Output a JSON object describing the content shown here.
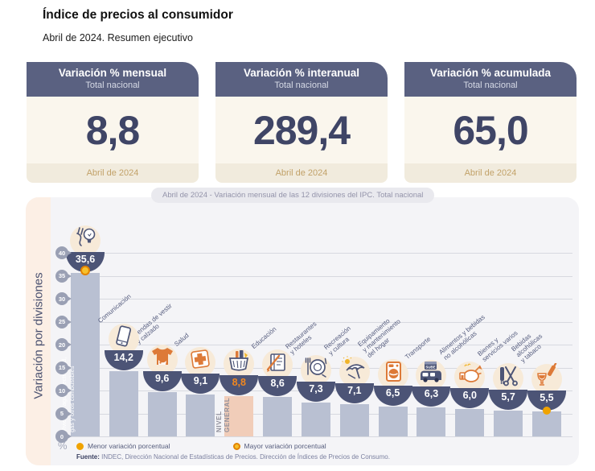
{
  "header": {
    "title": "Índice de precios al consumidor",
    "subtitle": "Abril de 2024. Resumen ejecutivo"
  },
  "cards": [
    {
      "title": "Variación % mensual",
      "subtitle": "Total nacional",
      "value": "8,8",
      "period": "Abril de 2024"
    },
    {
      "title": "Variación % interanual",
      "subtitle": "Total nacional",
      "value": "289,4",
      "period": "Abril de 2024"
    },
    {
      "title": "Variación % acumulada",
      "subtitle": "Total nacional",
      "value": "65,0",
      "period": "Abril de 2024"
    }
  ],
  "colors": {
    "navy": "#4c5476",
    "header_navy": "#5a6181",
    "bar_gray": "#b9c0d2",
    "bar_highlight": "#f1cdb9",
    "orange": "#dd7a38",
    "value_orange": "#f1871f",
    "yellow_dot": "#f0a300",
    "cream": "#faf6ed",
    "gold_text": "#c2a269"
  },
  "chart_data": {
    "type": "bar",
    "title": "Abril de 2024 - Variación mensual de las 12 divisiones del IPC. Total nacional",
    "ylabel": "Variación por divisiones",
    "unit": "%",
    "ylim": [
      0,
      40
    ],
    "yticks": [
      0,
      5,
      10,
      15,
      20,
      25,
      30,
      35,
      40
    ],
    "grid": true,
    "legend_position": "bottom",
    "legend": [
      {
        "marker": "solid-dot",
        "label": "Menor variación porcentual"
      },
      {
        "marker": "ring-dot",
        "label": "Mayor variación porcentual"
      }
    ],
    "source_label": "Fuente:",
    "source_text": " INDEC, Dirección Nacional de Estadísticas de Precios. Dirección de Índices de Precios de Consumo.",
    "bars": [
      {
        "label": "Vivienda, agua, electricidad,\ngas y otros combustibles",
        "value": 35.6,
        "display": "35,6",
        "icon": "bulb-plug-icon",
        "label_pos": "inside-white",
        "marker": "mayor"
      },
      {
        "label": "Comunicación",
        "value": 14.2,
        "display": "14,2",
        "icon": "smartphone-icon",
        "label_pos": "above"
      },
      {
        "label": "Prendas de vestir\ny calzado",
        "value": 9.6,
        "display": "9,6",
        "icon": "tshirt-icon",
        "label_pos": "above"
      },
      {
        "label": "Salud",
        "value": 9.1,
        "display": "9,1",
        "icon": "medical-cross-icon",
        "label_pos": "above"
      },
      {
        "label": "NIVEL\nGENERAL",
        "value": 8.8,
        "display": "8,8",
        "icon": "basket-icon",
        "label_pos": "inside-gray",
        "highlight": true
      },
      {
        "label": "Educación",
        "value": 8.6,
        "display": "8,6",
        "icon": "book-pencil-icon",
        "label_pos": "above"
      },
      {
        "label": "Restaurantes\ny hoteles",
        "value": 7.3,
        "display": "7,3",
        "icon": "plate-cutlery-icon",
        "label_pos": "above"
      },
      {
        "label": "Recreación\ny cultura",
        "value": 7.1,
        "display": "7,1",
        "icon": "beach-umbrella-icon",
        "label_pos": "above"
      },
      {
        "label": "Equipamiento\ny mantenimiento\ndel hogar",
        "value": 6.5,
        "display": "6,5",
        "icon": "washing-machine-icon",
        "label_pos": "above"
      },
      {
        "label": "Transporte",
        "value": 6.3,
        "display": "6,3",
        "icon": "bus-sube-icon",
        "label_pos": "above"
      },
      {
        "label": "Alimentos y bebidas\nno alcohólicas",
        "value": 6.0,
        "display": "6,0",
        "icon": "roast-chicken-icon",
        "label_pos": "above"
      },
      {
        "label": "Bienes y\nservicios varios",
        "value": 5.7,
        "display": "5,7",
        "icon": "scissors-comb-icon",
        "label_pos": "above"
      },
      {
        "label": "Bebidas\nalcohólicas\ny tabaco",
        "value": 5.5,
        "display": "5,5",
        "icon": "wine-bottle-icon",
        "label_pos": "above",
        "marker": "menor"
      }
    ]
  }
}
